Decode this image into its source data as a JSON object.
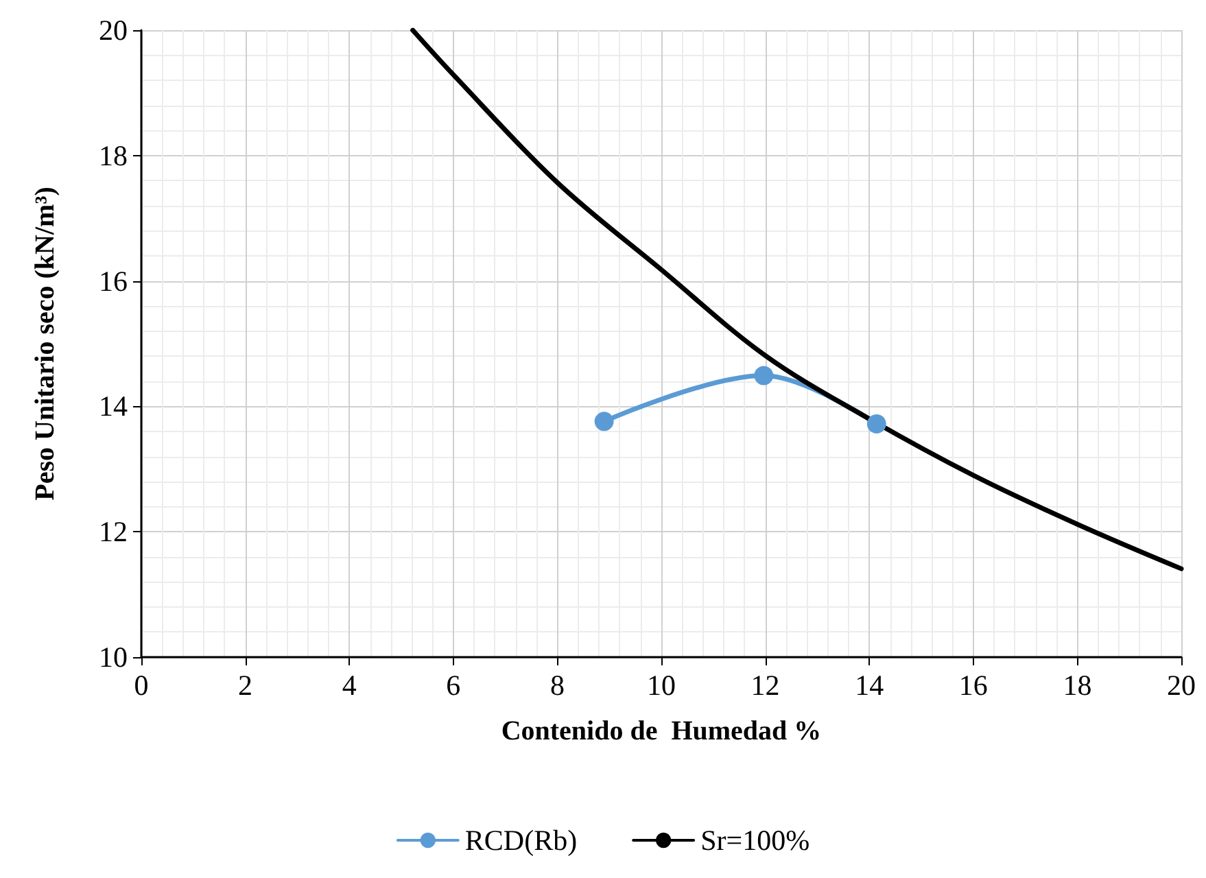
{
  "chart_data": {
    "type": "line",
    "xlabel": "Contenido de  Humedad %",
    "ylabel": "Peso Unitario seco (kN/m³)",
    "xlim": [
      0,
      20
    ],
    "xticks": [
      0,
      2,
      4,
      6,
      8,
      10,
      12,
      14,
      16,
      18,
      20
    ],
    "ylim": [
      10,
      20
    ],
    "yticks": [
      10,
      12,
      14,
      16,
      18,
      20
    ],
    "grid": true,
    "legend": "bottom",
    "series": [
      {
        "name": "RCD(Rb)",
        "color": "#5b9bd5",
        "marker": "circle",
        "x": [
          8.9,
          11.97,
          14.14
        ],
        "values": [
          13.76,
          14.49,
          13.72
        ]
      },
      {
        "name": "Sr=100%",
        "color": "#000000",
        "marker": "none",
        "x": [
          5.22,
          6,
          8,
          10,
          12,
          14,
          16,
          18,
          20
        ],
        "values": [
          20,
          19.29,
          17.57,
          16.18,
          14.81,
          13.8,
          12.9,
          12.12,
          11.41
        ]
      }
    ]
  }
}
